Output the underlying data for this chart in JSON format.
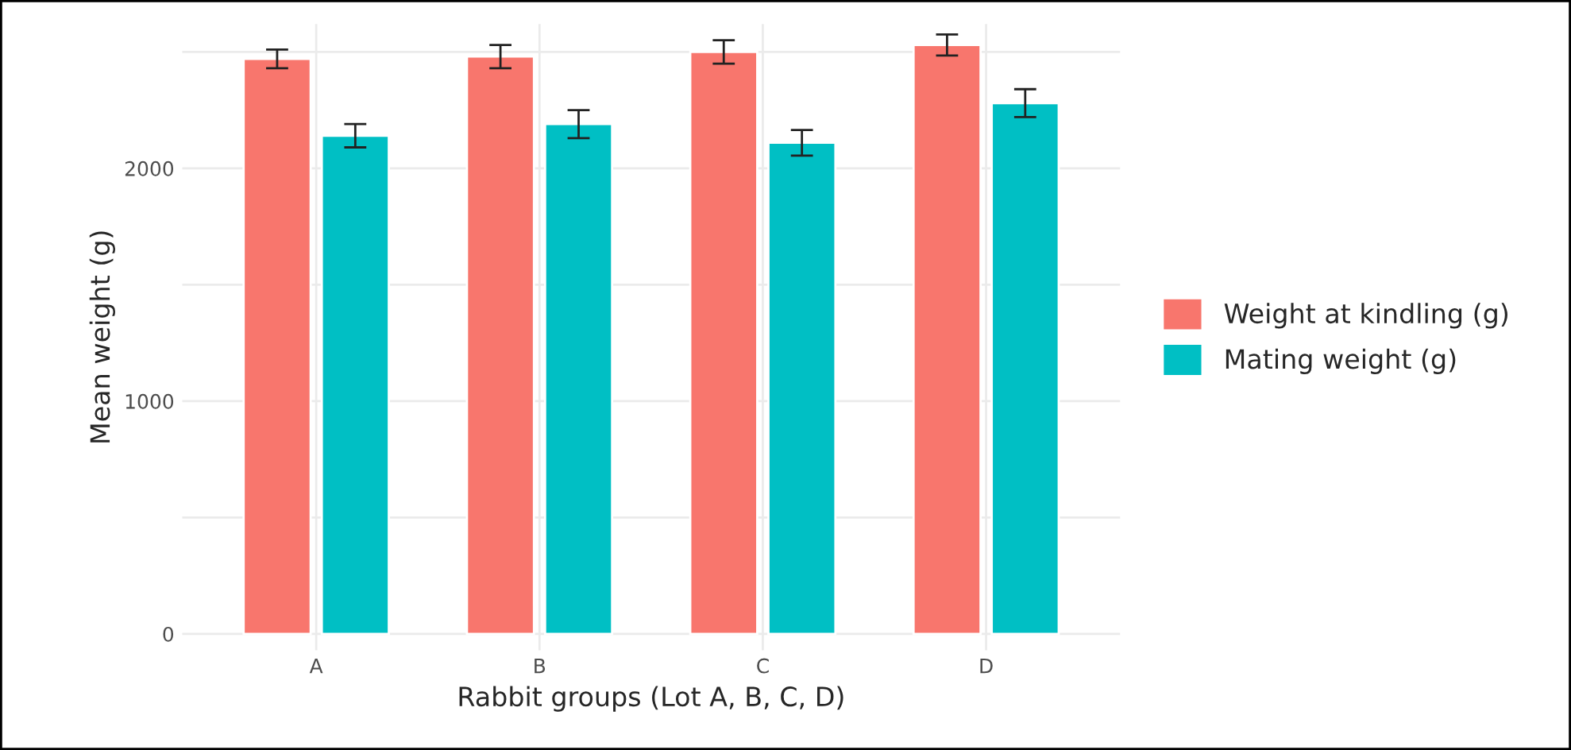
{
  "chart_data": {
    "type": "bar",
    "xlabel": "Rabbit groups (Lot A, B, C, D)",
    "ylabel": "Mean weight (g)",
    "categories": [
      "A",
      "B",
      "C",
      "D"
    ],
    "series": [
      {
        "name": "Weight at kindling (g)",
        "color": "#f8766d",
        "values": [
          2470,
          2480,
          2500,
          2530
        ],
        "errors": [
          40,
          50,
          50,
          45
        ]
      },
      {
        "name": "Mating weight (g)",
        "color": "#00bfc4",
        "values": [
          2140,
          2190,
          2110,
          2280
        ],
        "errors": [
          50,
          60,
          55,
          60
        ]
      }
    ],
    "ylim": [
      -70,
      2620
    ],
    "yticks": [
      0,
      {
        "value": 500,
        "label": null
      },
      1000,
      {
        "value": 1500,
        "label": null
      },
      2000,
      {
        "value": 2500,
        "label": null
      }
    ],
    "grid": true,
    "legend": "right"
  }
}
